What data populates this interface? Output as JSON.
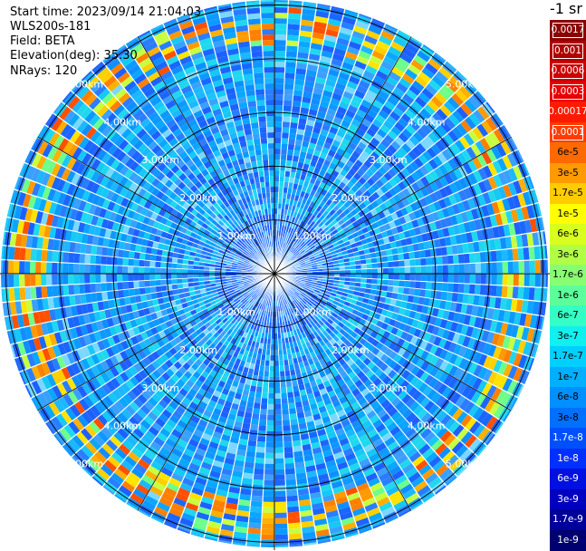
{
  "header": {
    "start_time": "Start time: 2023/09/14 21:04:03",
    "instrument": "WLS200s-181",
    "field": "Field: BETA",
    "elevation": "Elevation(deg): 35.30",
    "nrays": "NRays: 120"
  },
  "colorbar": {
    "unit_label": "-1 sr",
    "ticks": [
      {
        "label": "0.0017",
        "color": "#8b0000",
        "text": "#ffffff",
        "boxed": true
      },
      {
        "label": "0.001",
        "color": "#b00000",
        "text": "#ffffff",
        "boxed": true
      },
      {
        "label": "0.0006",
        "color": "#cc0000",
        "text": "#ffffff",
        "boxed": true
      },
      {
        "label": "0.0003",
        "color": "#e60000",
        "text": "#ffffff",
        "boxed": true
      },
      {
        "label": "0.00017",
        "color": "#ff1a00",
        "text": "#ffffff",
        "boxed": false
      },
      {
        "label": "0.0001",
        "color": "#ff3c00",
        "text": "#ffffff",
        "boxed": true
      },
      {
        "label": "6e-5",
        "color": "#ff6a00",
        "text": "#000000",
        "boxed": false
      },
      {
        "label": "3e-5",
        "color": "#ff9a00",
        "text": "#000000",
        "boxed": false
      },
      {
        "label": "1.7e-5",
        "color": "#ffcc00",
        "text": "#000000",
        "boxed": false
      },
      {
        "label": "1e-5",
        "color": "#ffff00",
        "text": "#000000",
        "boxed": false
      },
      {
        "label": "6e-6",
        "color": "#d8ff1e",
        "text": "#000000",
        "boxed": false
      },
      {
        "label": "3e-6",
        "color": "#b0ff46",
        "text": "#000000",
        "boxed": false
      },
      {
        "label": "1.7e-6",
        "color": "#88ff70",
        "text": "#000000",
        "boxed": false
      },
      {
        "label": "1e-6",
        "color": "#5cff9a",
        "text": "#000000",
        "boxed": false
      },
      {
        "label": "6e-7",
        "color": "#34ffc4",
        "text": "#000000",
        "boxed": false
      },
      {
        "label": "3e-7",
        "color": "#10f0ee",
        "text": "#000000",
        "boxed": false
      },
      {
        "label": "1.7e-7",
        "color": "#00d0ff",
        "text": "#000000",
        "boxed": false
      },
      {
        "label": "1e-7",
        "color": "#00b0ff",
        "text": "#000000",
        "boxed": false
      },
      {
        "label": "6e-8",
        "color": "#0090ff",
        "text": "#000000",
        "boxed": false
      },
      {
        "label": "3e-8",
        "color": "#0070ff",
        "text": "#000000",
        "boxed": false
      },
      {
        "label": "1.7e-8",
        "color": "#0050ff",
        "text": "#ffffff",
        "boxed": false
      },
      {
        "label": "1e-8",
        "color": "#0030ff",
        "text": "#ffffff",
        "boxed": false
      },
      {
        "label": "6e-9",
        "color": "#0010e0",
        "text": "#ffffff",
        "boxed": false
      },
      {
        "label": "3e-9",
        "color": "#0000c0",
        "text": "#ffffff",
        "boxed": false
      },
      {
        "label": "1.7e-9",
        "color": "#00009a",
        "text": "#ffffff",
        "boxed": false
      },
      {
        "label": "1e-9",
        "color": "#000070",
        "text": "#ffffff",
        "boxed": false
      }
    ]
  },
  "range_rings": [
    "1.00km",
    "2.00km",
    "3.00km",
    "4.00km",
    "5.00km"
  ],
  "rays": 120
}
